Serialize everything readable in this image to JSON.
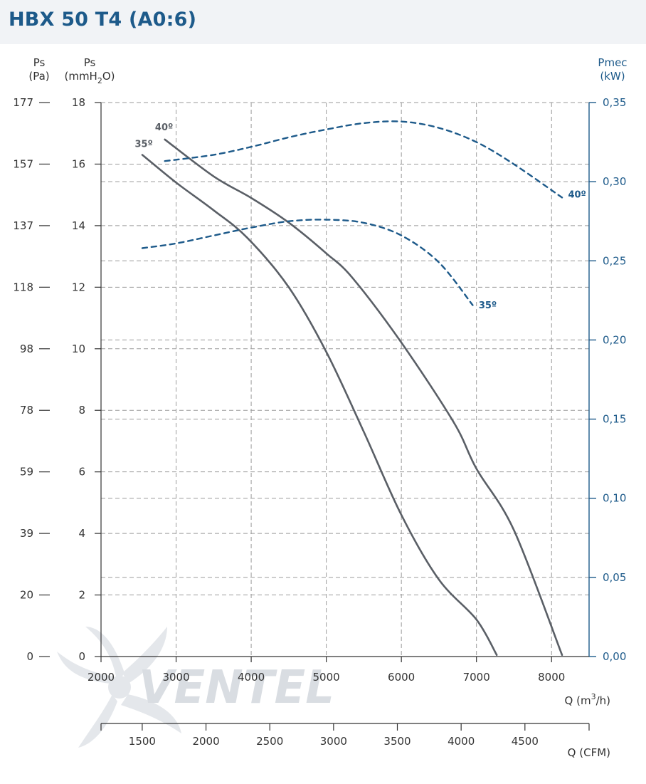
{
  "header": {
    "title": "HBX 50 T4 (A0:6)"
  },
  "watermark": {
    "text": "VENTEL"
  },
  "colors": {
    "accent": "#1d5a8a",
    "pressure_curve": "#5a5f66",
    "grid": "#9a9a9a",
    "header_bg": "#f1f3f6"
  },
  "chart_data": {
    "type": "line",
    "title": "",
    "axes": {
      "x_primary": {
        "label": "Q (m",
        "label_sup": "3",
        "label_tail": "/h)",
        "range": [
          2000,
          8500
        ],
        "ticks": [
          2000,
          3000,
          4000,
          5000,
          6000,
          7000,
          8000
        ]
      },
      "x_secondary": {
        "label": "Q (CFM)",
        "ticks": [
          1500,
          2000,
          2500,
          3000,
          3500,
          4000,
          4500
        ],
        "tick_labels": [
          "1500",
          "2000",
          "2500",
          "3000",
          "3500",
          "4000",
          "4500"
        ],
        "conversion_m3h_per_cfm": 1.699
      },
      "y_left_pa": {
        "label_line1": "Ps",
        "label_line2": "(Pa)",
        "tick_labels": [
          "0",
          "20",
          "39",
          "59",
          "78",
          "98",
          "118",
          "137",
          "157",
          "177"
        ]
      },
      "y_left_mmh2o": {
        "label_line1": "Ps",
        "label_line2_a": "(mmH",
        "label_line2_sub": "2",
        "label_line2_b": "O)",
        "range": [
          0,
          18
        ],
        "ticks": [
          0,
          2,
          4,
          6,
          8,
          10,
          12,
          14,
          16,
          18
        ],
        "tick_labels": [
          "0",
          "2",
          "4",
          "6",
          "8",
          "10",
          "12",
          "14",
          "16",
          "18"
        ]
      },
      "y_right_kw": {
        "label_line1": "Pmec",
        "label_line2": "(kW)",
        "range": [
          0,
          0.35
        ],
        "ticks": [
          0,
          0.05,
          0.1,
          0.15,
          0.2,
          0.25,
          0.3,
          0.35
        ],
        "tick_labels": [
          "0,00",
          "0,05",
          "0,10",
          "0,15",
          "0,20",
          "0,25",
          "0,30",
          "0,35"
        ]
      }
    },
    "grid": true,
    "series": [
      {
        "name": "35º",
        "kind": "pressure",
        "axis": "mmH2O",
        "style": "solid",
        "x": [
          2550,
          3000,
          3500,
          3950,
          4500,
          5000,
          5500,
          6000,
          6500,
          7000,
          7270
        ],
        "y": [
          16.3,
          15.4,
          14.5,
          13.6,
          12.0,
          9.9,
          7.3,
          4.6,
          2.5,
          1.2,
          0.05
        ]
      },
      {
        "name": "40º",
        "kind": "pressure",
        "axis": "mmH2O",
        "style": "solid",
        "x": [
          2850,
          3500,
          4000,
          4500,
          5000,
          5350,
          6000,
          6700,
          7000,
          7500,
          8140
        ],
        "y": [
          16.8,
          15.6,
          14.9,
          14.1,
          13.1,
          12.3,
          10.2,
          7.6,
          6.1,
          4.1,
          0.05
        ]
      },
      {
        "name": "35º",
        "kind": "power",
        "axis": "kW",
        "style": "dashed",
        "x": [
          2550,
          3000,
          3500,
          4000,
          4500,
          5000,
          5500,
          6000,
          6500,
          6950
        ],
        "y": [
          0.258,
          0.261,
          0.266,
          0.271,
          0.275,
          0.276,
          0.274,
          0.266,
          0.249,
          0.222
        ]
      },
      {
        "name": "40º",
        "kind": "power",
        "axis": "kW",
        "style": "dashed",
        "x": [
          2850,
          3500,
          4000,
          4500,
          5000,
          5500,
          6000,
          6500,
          7000,
          7500,
          8140
        ],
        "y": [
          0.313,
          0.317,
          0.322,
          0.328,
          0.333,
          0.337,
          0.338,
          0.334,
          0.325,
          0.311,
          0.29
        ]
      }
    ],
    "series_labels": [
      {
        "text": "35º",
        "series_index": 0,
        "x": 2570,
        "y": 16.55
      },
      {
        "text": "40º",
        "series_index": 1,
        "x": 2840,
        "y": 17.1
      },
      {
        "text": "40º",
        "series_index": 3,
        "x": 8220,
        "y": 0.29
      },
      {
        "text": "35º",
        "series_index": 2,
        "x": 7030,
        "y": 0.22
      }
    ]
  }
}
